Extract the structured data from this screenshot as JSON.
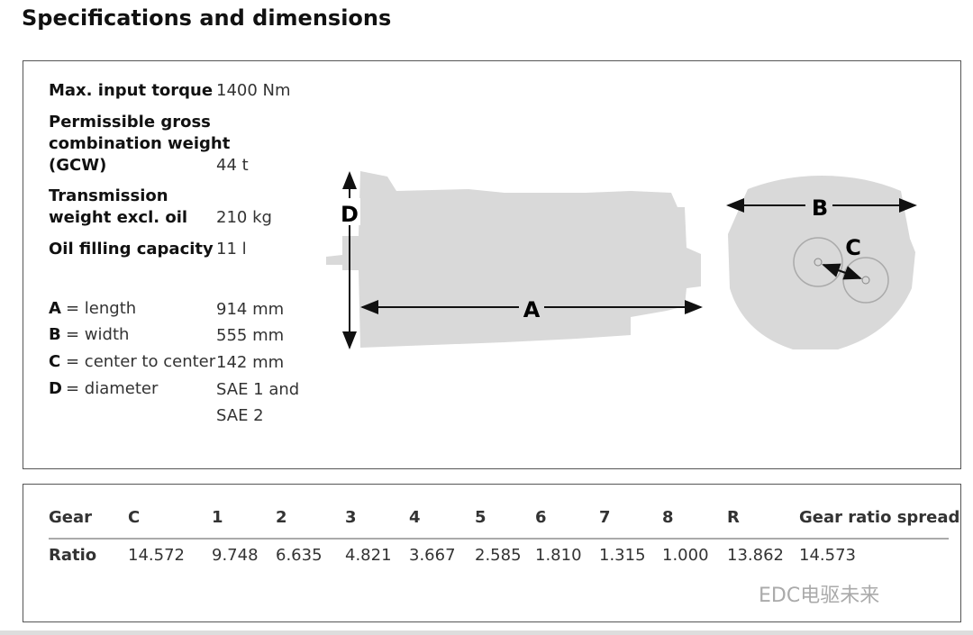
{
  "header": {
    "title": "Specifications and dimensions"
  },
  "specs": [
    {
      "label": "Max. input torque",
      "value": "1400 Nm"
    },
    {
      "label": "Permissible gross\ncombination weight\n(GCW)",
      "value": "44 t"
    },
    {
      "label": "Transmission\nweight excl. oil",
      "value": "210 kg"
    },
    {
      "label": "Oil filling capacity",
      "value": "11 l"
    }
  ],
  "dimensions": [
    {
      "letter": "A",
      "description": "= length",
      "value": "914 mm"
    },
    {
      "letter": "B",
      "description": "= width",
      "value": "555 mm"
    },
    {
      "letter": "C",
      "description": "= center to center",
      "value": "142 mm"
    },
    {
      "letter": "D",
      "description": "= diameter",
      "value": "SAE 1 and\nSAE 2"
    }
  ],
  "diagram": {
    "labels": [
      "A",
      "B",
      "C",
      "D"
    ]
  },
  "table": {
    "header": [
      "Gear",
      "C",
      "1",
      "2",
      "3",
      "4",
      "5",
      "6",
      "7",
      "8",
      "R",
      "Gear ratio spread"
    ],
    "rows": [
      [
        "Ratio",
        "14.572",
        "9.748",
        "6.635",
        "4.821",
        "3.667",
        "2.585",
        "1.810",
        "1.315",
        "1.000",
        "13.862",
        "14.573"
      ]
    ]
  },
  "watermark": "EDC电驱未来"
}
